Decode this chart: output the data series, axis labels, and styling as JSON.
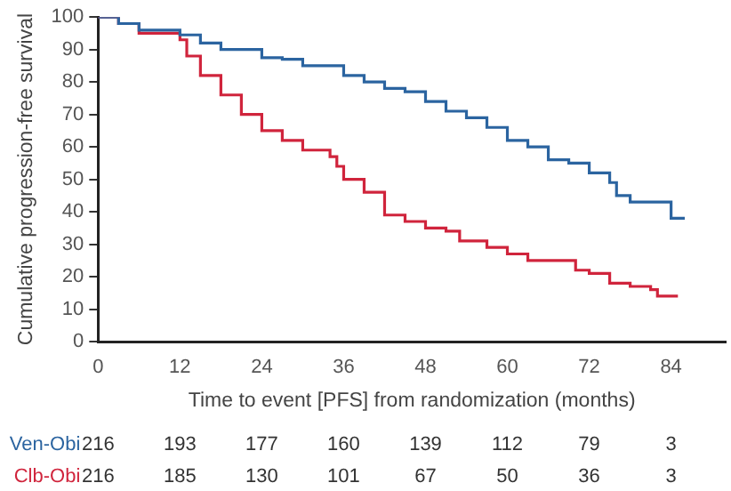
{
  "chart_data": {
    "type": "step",
    "xlabel": "Time to event [PFS] from randomization (months)",
    "ylabel": "Cumulative progression-free survival",
    "xlim": [
      0,
      92
    ],
    "xticks": [
      0,
      12,
      24,
      36,
      48,
      60,
      72,
      84
    ],
    "ylim": [
      0,
      100
    ],
    "yticks": [
      0,
      10,
      20,
      30,
      40,
      50,
      60,
      70,
      80,
      90,
      100
    ],
    "grid": false,
    "series": [
      {
        "name": "Ven-Obi",
        "color": "#2b64a0",
        "x": [
          0,
          3,
          6,
          12,
          15,
          18,
          24,
          27,
          30,
          36,
          39,
          42,
          45,
          48,
          51,
          54,
          57,
          60,
          63,
          66,
          69,
          72,
          75,
          76,
          78,
          83,
          84,
          86
        ],
        "values": [
          100,
          98,
          96,
          94.5,
          92,
          90,
          87.5,
          87,
          85,
          82,
          80,
          78,
          77,
          74,
          71,
          69,
          66,
          62,
          60,
          56,
          55,
          52,
          49,
          45,
          43,
          43,
          38,
          38
        ]
      },
      {
        "name": "Clb-Obi",
        "color": "#d0243c",
        "x": [
          0,
          3,
          6,
          12,
          13,
          15,
          18,
          21,
          24,
          27,
          30,
          34,
          35,
          36,
          39,
          42,
          45,
          48,
          51,
          53,
          57,
          60,
          63,
          67,
          70,
          72,
          75,
          78,
          81,
          82,
          85
        ],
        "values": [
          100,
          98,
          95,
          93,
          88,
          82,
          76,
          70,
          65,
          62,
          59,
          57,
          54,
          50,
          46,
          39,
          37,
          35,
          34,
          31,
          29,
          27,
          25,
          25,
          22,
          21,
          18,
          17,
          16,
          14,
          14
        ]
      }
    ],
    "annotations": [
      "216",
      "193",
      "177",
      "160",
      "139",
      "112",
      "79",
      "3",
      "216",
      "185",
      "130",
      "101",
      "67",
      "50",
      "36",
      "3"
    ]
  }
}
